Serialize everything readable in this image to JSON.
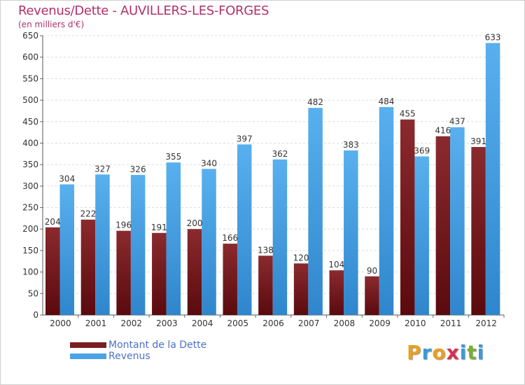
{
  "title": "Revenus/Dette - AUVILLERS-LES-FORGES",
  "subtitle": "(en milliers d'€)",
  "brand": {
    "letters": [
      {
        "ch": "P",
        "color": "#e8a020"
      },
      {
        "ch": "r",
        "color": "#3a9ad8"
      },
      {
        "ch": "o",
        "color": "#e8a020"
      },
      {
        "ch": "x",
        "color": "#d83050"
      },
      {
        "ch": "i",
        "color": "#3a9ad8"
      },
      {
        "ch": "t",
        "color": "#78b030"
      },
      {
        "ch": "i",
        "color": "#3a9ad8"
      }
    ]
  },
  "chart_data": {
    "type": "bar",
    "title": "Revenus/Dette - AUVILLERS-LES-FORGES",
    "subtitle": "(en milliers d'€)",
    "categories": [
      "2000",
      "2001",
      "2002",
      "2003",
      "2004",
      "2005",
      "2006",
      "2007",
      "2008",
      "2009",
      "2010",
      "2011",
      "2012"
    ],
    "series": [
      {
        "name": "Montant de la Dette",
        "color": "#7a1e22",
        "values": [
          204,
          222,
          196,
          191,
          200,
          166,
          138,
          120,
          104,
          90,
          455,
          416,
          391
        ]
      },
      {
        "name": "Revenus",
        "color": "#4aa3e6",
        "values": [
          304,
          327,
          326,
          355,
          340,
          397,
          362,
          482,
          383,
          484,
          369,
          437,
          633
        ]
      }
    ],
    "ylim": [
      0,
      650
    ],
    "ytick_step": 50,
    "grid": true,
    "legend": "bottom-left"
  }
}
